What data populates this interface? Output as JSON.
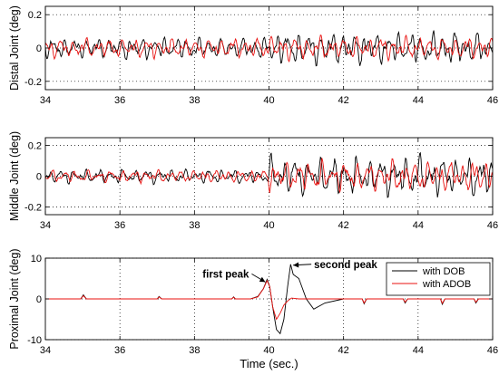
{
  "chart_data": [
    {
      "type": "line",
      "ylabel": "Distal Joint (deg)",
      "xlim": [
        34,
        46
      ],
      "ylim": [
        -0.25,
        0.25
      ],
      "xticks": [
        "34",
        "36",
        "38",
        "40",
        "42",
        "44",
        "46"
      ],
      "yticks": [
        "0.2",
        "0",
        "-0.2"
      ],
      "ytick_values": [
        0.2,
        0,
        -0.2
      ],
      "grid": true,
      "series": [
        {
          "key": "dob",
          "color": "#000000",
          "amplitude": 0.07,
          "disturbed_amplitude": 0.11
        },
        {
          "key": "adob",
          "color": "#e8110f",
          "amplitude": 0.065,
          "disturbed_amplitude": 0.075
        }
      ],
      "disturbance_start": 40
    },
    {
      "type": "line",
      "ylabel": "Middle Joint (deg)",
      "xlim": [
        34,
        46
      ],
      "ylim": [
        -0.25,
        0.25
      ],
      "xticks": [
        "34",
        "36",
        "38",
        "40",
        "42",
        "44",
        "46"
      ],
      "yticks": [
        "0.2",
        "0",
        "-0.2"
      ],
      "ytick_values": [
        0.2,
        0,
        -0.2
      ],
      "grid": true,
      "series": [
        {
          "key": "dob",
          "color": "#000000",
          "amplitude": 0.05,
          "disturbed_amplitude": 0.14
        },
        {
          "key": "adob",
          "color": "#e8110f",
          "amplitude": 0.045,
          "disturbed_amplitude": 0.11
        }
      ],
      "disturbance_start": 40
    },
    {
      "type": "line",
      "ylabel": "Proximal Joint (deg)",
      "xlabel": "Time (sec.)",
      "xlim": [
        34,
        46
      ],
      "ylim": [
        -10,
        10
      ],
      "xticks": [
        "34",
        "36",
        "38",
        "40",
        "42",
        "44",
        "46"
      ],
      "yticks": [
        "10",
        "0",
        "-10"
      ],
      "ytick_values": [
        10,
        0,
        -10
      ],
      "grid": true,
      "legend": {
        "position": "top-right",
        "entries": [
          "with DOB",
          "with ADOB"
        ]
      },
      "series": [
        {
          "name": "with DOB",
          "key": "dob",
          "color": "#000000",
          "x": [
            34,
            34.95,
            35.02,
            35.1,
            36,
            37.0,
            37.05,
            37.12,
            38,
            39.0,
            39.05,
            39.1,
            39.5,
            39.7,
            39.85,
            39.95,
            40.02,
            40.1,
            40.2,
            40.3,
            40.4,
            40.5,
            40.58,
            40.65,
            40.8,
            41.0,
            41.2,
            41.5,
            42,
            42.5,
            42.55,
            42.62,
            43,
            43.6,
            43.65,
            43.72,
            44,
            44.6,
            44.65,
            44.72,
            45,
            45.5,
            45.55,
            45.62,
            46
          ],
          "y": [
            0,
            0,
            1.0,
            0,
            0,
            0,
            0.6,
            0,
            0,
            0,
            0.5,
            0,
            0,
            0.6,
            2.5,
            4.8,
            3.0,
            -2.0,
            -7.5,
            -8.5,
            -5.0,
            3.0,
            8.5,
            6.0,
            5.0,
            0,
            -2.5,
            -1.0,
            0,
            0,
            -1.2,
            0,
            0,
            0,
            -1.0,
            0,
            0,
            0,
            -1.3,
            0,
            0,
            0,
            -1.0,
            0,
            0
          ]
        },
        {
          "name": "with ADOB",
          "key": "adob",
          "color": "#e8110f",
          "x": [
            34,
            34.95,
            35.02,
            35.1,
            36,
            37.0,
            37.05,
            37.12,
            38,
            39.0,
            39.05,
            39.1,
            39.5,
            39.7,
            39.85,
            39.95,
            40.02,
            40.1,
            40.2,
            40.3,
            40.4,
            40.5,
            40.6,
            40.8,
            41.0,
            41.5,
            42,
            42.5,
            42.55,
            42.62,
            43,
            43.6,
            43.65,
            43.72,
            44,
            44.6,
            44.65,
            44.72,
            45,
            45.5,
            45.55,
            45.62,
            46
          ],
          "y": [
            0,
            0,
            0.8,
            0,
            0,
            0,
            0.5,
            0,
            0,
            0,
            0.4,
            0,
            0,
            0.5,
            2.5,
            4.5,
            3.0,
            -2.0,
            -5.0,
            -3.5,
            -1.5,
            -0.5,
            0.2,
            0,
            0,
            0,
            0,
            0,
            -1.0,
            0,
            0,
            0,
            -0.8,
            0,
            0,
            0,
            -1.1,
            0,
            0,
            0,
            -0.8,
            0,
            0
          ]
        }
      ],
      "annotations": [
        {
          "text": "first peak",
          "x": 39.95,
          "y": 4.8
        },
        {
          "text": "second peak",
          "x": 40.6,
          "y": 8.5
        }
      ]
    }
  ]
}
